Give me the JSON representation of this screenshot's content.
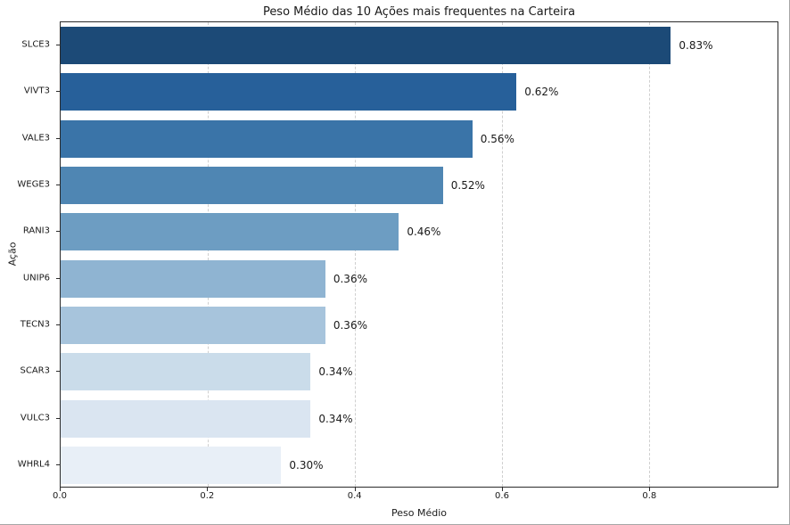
{
  "title": "Peso Médio das 10 Ações mais frequentes na Carteira",
  "x_axis_label": "Peso Médio",
  "y_axis_label": "Ação",
  "chart_data": {
    "type": "bar",
    "orientation": "horizontal",
    "title": "Peso Médio das 10 Ações mais frequentes na Carteira",
    "xlabel": "Peso Médio",
    "ylabel": "Ação",
    "categories": [
      "SLCE3",
      "VIVT3",
      "VALE3",
      "WEGE3",
      "RANI3",
      "UNIP6",
      "TECN3",
      "SCAR3",
      "VULC3",
      "WHRL4"
    ],
    "values": [
      0.83,
      0.62,
      0.56,
      0.52,
      0.46,
      0.36,
      0.36,
      0.34,
      0.34,
      0.3
    ],
    "value_labels": [
      "0.83%",
      "0.62%",
      "0.56%",
      "0.52%",
      "0.46%",
      "0.36%",
      "0.36%",
      "0.34%",
      "0.34%",
      "0.30%"
    ],
    "bar_colors": [
      "#1c4a77",
      "#27609a",
      "#3a74a8",
      "#4f86b3",
      "#6d9dc2",
      "#8fb4d2",
      "#a7c4dc",
      "#cadcea",
      "#dae5f1",
      "#e8eff7"
    ],
    "xlim": [
      0,
      0.975
    ],
    "xticks": [
      0.0,
      0.2,
      0.4,
      0.6,
      0.8
    ],
    "xtick_labels": [
      "0.0",
      "0.2",
      "0.4",
      "0.6",
      "0.8"
    ],
    "grid": "vertical-dashed",
    "grid_color": "#cfcfcf",
    "legend": "none",
    "background_color": "#ffffff",
    "spine_color": "#2b2b2b"
  }
}
